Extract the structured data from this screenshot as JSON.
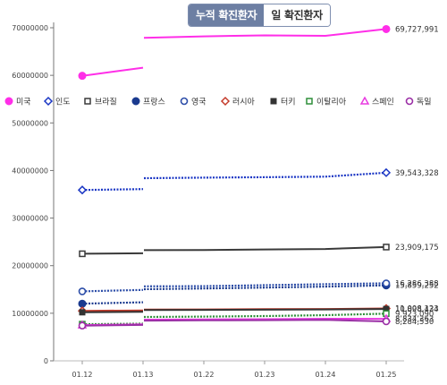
{
  "tabs": [
    {
      "label": "누적 확진환자",
      "active": true
    },
    {
      "label": "일 확진환자",
      "active": false
    }
  ],
  "chart_data": {
    "type": "line",
    "title": "",
    "xlabel": "",
    "ylabel": "",
    "x": [
      "01.12",
      "01.13",
      "01.22",
      "01.23",
      "01.24",
      "01.25"
    ],
    "ylim": [
      0,
      70000000
    ],
    "yticks": [
      "0",
      "10000000",
      "20000000",
      "30000000",
      "40000000",
      "50000000",
      "60000000",
      "70000000"
    ],
    "legend_position": "top",
    "grid": false,
    "series": [
      {
        "name": "미국",
        "color": "#ff2ee8",
        "marker": "circle-filled",
        "style": "solid",
        "values": [
          59900000,
          61600000,
          68200000,
          68400000,
          68300000,
          69727991
        ],
        "end_label": "69,727,991"
      },
      {
        "name": "인도",
        "color": "#1a36c4",
        "marker": "diamond-open",
        "style": "dotted",
        "values": [
          35900000,
          36100000,
          38500000,
          38600000,
          38700000,
          39543328
        ],
        "end_label": "39,543,328"
      },
      {
        "name": "브라질",
        "color": "#3a3a3a",
        "marker": "square-open",
        "style": "solid",
        "values": [
          22500000,
          22600000,
          23300000,
          23400000,
          23500000,
          23909175
        ],
        "end_label": "23,909,175"
      },
      {
        "name": "프랑스",
        "color": "#1a3a8f",
        "marker": "circle-filled",
        "style": "dotted",
        "values": [
          12000000,
          12300000,
          15200000,
          15400000,
          15600000,
          15859252
        ],
        "end_label": "15,859,252"
      },
      {
        "name": "영국",
        "color": "#2c4da8",
        "marker": "circle-open",
        "style": "dotted",
        "values": [
          14600000,
          14900000,
          15700000,
          15900000,
          16100000,
          16286388
        ],
        "end_label": "16,286,388"
      },
      {
        "name": "러시아",
        "color": "#c43a2a",
        "marker": "diamond-open",
        "style": "solid",
        "values": [
          10500000,
          10600000,
          10800000,
          10850000,
          10900000,
          11008123
        ],
        "end_label": "11,008,123"
      },
      {
        "name": "터키",
        "color": "#333333",
        "marker": "square-filled",
        "style": "solid",
        "values": [
          10200000,
          10300000,
          10700000,
          10750000,
          10800000,
          10898434
        ],
        "end_label": "10,898,434"
      },
      {
        "name": "이탈리아",
        "color": "#2f8f3a",
        "marker": "square-open",
        "style": "dotted",
        "values": [
          7700000,
          7800000,
          9300000,
          9400000,
          9600000,
          9923090
        ],
        "end_label": "9,923,090"
      },
      {
        "name": "스페인",
        "color": "#e83ae0",
        "marker": "triangle-open",
        "style": "solid",
        "values": [
          7500000,
          7650000,
          8700000,
          8750000,
          8850000,
          8834363
        ],
        "end_label": "8,834,363"
      },
      {
        "name": "독일",
        "color": "#9b2fa6",
        "marker": "circle-open",
        "style": "solid",
        "values": [
          7400000,
          7550000,
          8500000,
          8550000,
          8600000,
          8284530
        ],
        "end_label": "8,284,530"
      }
    ]
  }
}
